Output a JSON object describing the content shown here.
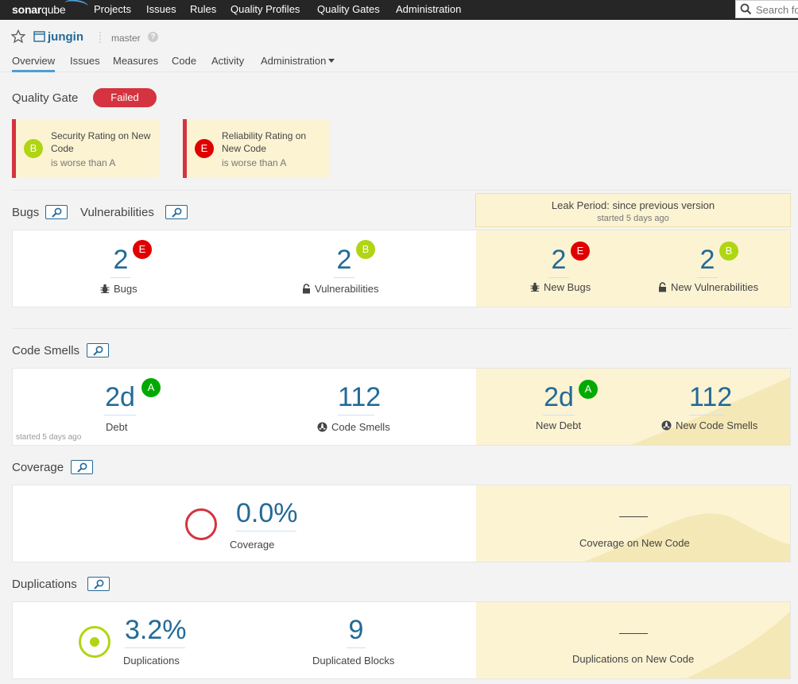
{
  "topnav": {
    "logo_bold": "sonar",
    "logo_rest": "qube",
    "items": [
      "Projects",
      "Issues",
      "Rules",
      "Quality Profiles",
      "Quality Gates",
      "Administration"
    ],
    "search_placeholder": "Search fo"
  },
  "project": {
    "name": "jungin",
    "branch": "master",
    "help": "?",
    "tabs": [
      "Overview",
      "Issues",
      "Measures",
      "Code",
      "Activity",
      "Administration"
    ]
  },
  "quality_gate": {
    "title": "Quality Gate",
    "status": "Failed",
    "conditions": [
      {
        "rating": "B",
        "line1": "Security Rating on New",
        "line2": "Code",
        "detail": "is worse than A"
      },
      {
        "rating": "E",
        "line1": "Reliability Rating on",
        "line2": "New Code",
        "detail": "is worse than A"
      }
    ]
  },
  "leak_period": {
    "title": "Leak Period: since previous version",
    "started": "started 5 days ago"
  },
  "bugs_section": {
    "title_bugs": "Bugs",
    "title_vulns": "Vulnerabilities",
    "bugs": {
      "value": "2",
      "rating": "E",
      "label": "Bugs"
    },
    "vulnerabilities": {
      "value": "2",
      "rating": "B",
      "label": "Vulnerabilities"
    },
    "new_bugs": {
      "value": "2",
      "rating": "E",
      "label": "New Bugs"
    },
    "new_vulnerabilities": {
      "value": "2",
      "rating": "B",
      "label": "New Vulnerabilities"
    }
  },
  "code_smells_section": {
    "title": "Code Smells",
    "debt": {
      "value": "2d",
      "rating": "A",
      "label": "Debt"
    },
    "smells": {
      "value": "112",
      "label": "Code Smells"
    },
    "new_debt": {
      "value": "2d",
      "rating": "A",
      "label": "New Debt"
    },
    "new_smells": {
      "value": "112",
      "label": "New Code Smells"
    },
    "note": "started 5 days ago"
  },
  "coverage_section": {
    "title": "Coverage",
    "coverage": {
      "value": "0.0%",
      "label": "Coverage"
    },
    "new_coverage": {
      "value": "—",
      "label": "Coverage on New Code"
    }
  },
  "duplications_section": {
    "title": "Duplications",
    "duplications": {
      "value": "3.2%",
      "label": "Duplications"
    },
    "blocks": {
      "value": "9",
      "label": "Duplicated Blocks"
    },
    "new_duplications": {
      "value": "—",
      "label": "Duplications on New Code"
    }
  },
  "colors": {
    "accent": "#236a97",
    "failed": "#d4333f",
    "leak_bg": "#fcf3d3",
    "rating_A": "#00aa00",
    "rating_B": "#b0d513",
    "rating_E": "#e00000"
  }
}
